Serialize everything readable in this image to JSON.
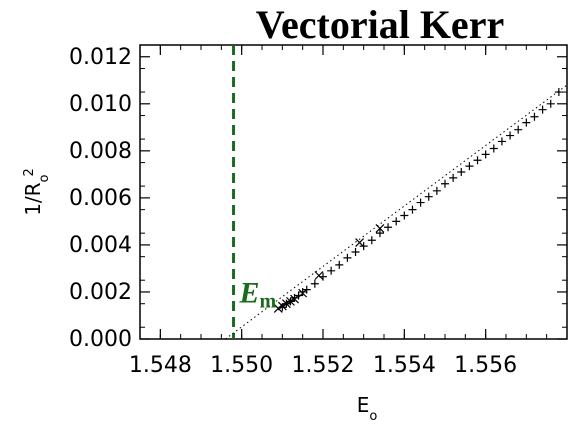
{
  "chart_data": {
    "type": "scatter",
    "title": "Vectorial Kerr",
    "xlabel": "E",
    "xlabel_sub": "o",
    "ylabel": "1/R",
    "ylabel_sub": "o",
    "ylabel_sup": "2",
    "xlim": [
      1.5475,
      1.558
    ],
    "ylim": [
      0.0,
      0.0125
    ],
    "x_ticks": [
      1.548,
      1.55,
      1.552,
      1.554,
      1.556
    ],
    "x_tick_labels": [
      "1.548",
      "1.550",
      "1.552",
      "1.554",
      "1.556"
    ],
    "y_ticks": [
      0.0,
      0.002,
      0.004,
      0.006,
      0.008,
      0.01,
      0.012
    ],
    "y_tick_labels": [
      "0.000",
      "0.002",
      "0.004",
      "0.006",
      "0.008",
      "0.010",
      "0.012"
    ],
    "grid": false,
    "annotation": {
      "text": "E",
      "sub": "m",
      "x": 1.5498,
      "y": 0.0019,
      "color": "#1a6b1a"
    },
    "vline": {
      "x": 1.5498,
      "color": "#1a6b1a",
      "style": "dashed"
    },
    "fit_line": {
      "x": [
        1.5496,
        1.558
      ],
      "y": [
        0.0,
        0.0108
      ],
      "style": "dotted"
    },
    "series": [
      {
        "marker": "+",
        "x": [
          1.551,
          1.5511,
          1.5512,
          1.5513,
          1.5514,
          1.5515,
          1.5516,
          1.5518,
          1.552,
          1.5522,
          1.5524,
          1.5526,
          1.5528,
          1.553,
          1.5532,
          1.5534,
          1.5536,
          1.5538,
          1.554,
          1.5542,
          1.5544,
          1.5546,
          1.5548,
          1.555,
          1.5552,
          1.5554,
          1.5556,
          1.5558,
          1.556,
          1.5562,
          1.5564,
          1.5566,
          1.5568,
          1.557,
          1.5572,
          1.5574,
          1.5576,
          1.5578
        ],
        "y": [
          0.00135,
          0.0015,
          0.0016,
          0.00175,
          0.00185,
          0.002,
          0.0021,
          0.00235,
          0.00265,
          0.0029,
          0.00315,
          0.00345,
          0.0037,
          0.00395,
          0.0042,
          0.0045,
          0.00475,
          0.005,
          0.00525,
          0.0055,
          0.0058,
          0.00605,
          0.0063,
          0.0066,
          0.00685,
          0.0071,
          0.00735,
          0.0076,
          0.00785,
          0.0081,
          0.0084,
          0.00865,
          0.0089,
          0.0092,
          0.00945,
          0.00975,
          0.01,
          0.0105
        ]
      },
      {
        "marker": "x",
        "x": [
          1.5509,
          1.551,
          1.5511,
          1.5512,
          1.5513,
          1.5515,
          1.5519,
          1.5529,
          1.5534
        ],
        "y": [
          0.0013,
          0.0014,
          0.0015,
          0.0016,
          0.0017,
          0.00195,
          0.0027,
          0.0041,
          0.0047
        ]
      }
    ]
  }
}
